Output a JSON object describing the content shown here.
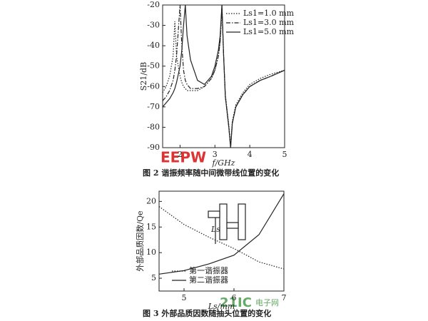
{
  "chart_data": [
    {
      "type": "line",
      "x_label": "f/GHz",
      "y_label": "S21/dB",
      "caption": "图 2   谐振频率随中间微带线位置的变化",
      "xlim": [
        1.5,
        5
      ],
      "xticks": [
        2,
        3,
        4,
        5
      ],
      "ylim": [
        -90,
        -20
      ],
      "yticks": [
        -20,
        -30,
        -40,
        -50,
        -60,
        -70,
        -80,
        -90
      ],
      "legend": "upper right",
      "x": [
        1.5,
        1.6,
        1.7,
        1.8,
        1.85,
        1.9,
        2.0,
        2.05,
        2.1,
        2.15,
        2.2,
        2.3,
        2.5,
        2.7,
        2.9,
        3.0,
        3.1,
        3.15,
        3.2,
        3.25,
        3.3,
        3.4,
        3.45,
        3.5,
        3.6,
        3.8,
        4.0,
        4.3,
        4.6,
        5.0
      ],
      "series": [
        {
          "name": "Ls1=1.0 mm",
          "color": "#222",
          "linestyle": "dotted",
          "values": [
            -63,
            -60,
            -55,
            -45,
            -28,
            -45,
            -55,
            -58,
            -60,
            -61,
            -62,
            -62,
            -62,
            -60,
            -56,
            -52,
            -45,
            -38,
            -22,
            -45,
            -64,
            -79,
            -89,
            -77,
            -69,
            -63,
            -59,
            -56,
            -54,
            -52
          ]
        },
        {
          "name": "Ls1=3.0 mm",
          "color": "#222",
          "linestyle": "dashdot",
          "values": [
            -67,
            -65,
            -62,
            -57,
            -52,
            -45,
            -20,
            -40,
            -52,
            -57,
            -59,
            -61,
            -61,
            -60,
            -56,
            -52,
            -45,
            -38,
            -20,
            -45,
            -65,
            -80,
            -90,
            -78,
            -70,
            -64,
            -60,
            -57,
            -55,
            -52
          ]
        },
        {
          "name": "Ls1=5.0 mm",
          "color": "#222",
          "linestyle": "solid",
          "values": [
            -70,
            -68,
            -66,
            -63,
            -61,
            -58,
            -50,
            -42,
            -30,
            -20,
            -35,
            -47,
            -57,
            -59,
            -55,
            -50,
            -42,
            -35,
            -20,
            -45,
            -65,
            -80,
            -90,
            -78,
            -70,
            -64,
            -60,
            -57,
            -55,
            -52
          ]
        }
      ]
    },
    {
      "type": "line",
      "x_label": "Ls/mm",
      "y_label": "外部品质因数/Qe",
      "caption": "图 3   外部品质因数随抽头位置的变化",
      "inset_label": "Ls",
      "xlim": [
        4.5,
        7
      ],
      "xticks": [
        5,
        6,
        7
      ],
      "ylim": [
        2.5,
        22
      ],
      "yticks": [
        5,
        10,
        15,
        20
      ],
      "legend": "lower left",
      "x": [
        4.5,
        5,
        5.5,
        6,
        6.5,
        7
      ],
      "series": [
        {
          "name": "第一谐振器",
          "color": "#222",
          "linestyle": "dotted",
          "values": [
            19,
            15.5,
            13,
            10.8,
            8.2,
            6.8
          ]
        },
        {
          "name": "第二谐振器",
          "color": "#222",
          "linestyle": "solid",
          "values": [
            5.8,
            6.5,
            7.8,
            9.5,
            13.5,
            21.5
          ]
        }
      ]
    }
  ],
  "watermarks": [
    "EEPW",
    "21IC",
    "电子网"
  ]
}
